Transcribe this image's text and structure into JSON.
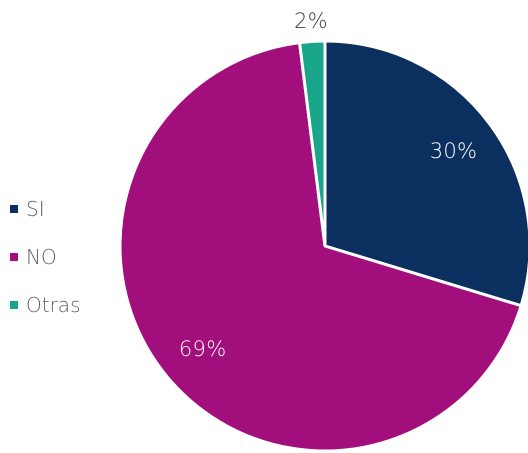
{
  "chart_data": {
    "type": "pie",
    "title": "",
    "legend_position": "left",
    "slices": [
      {
        "label": "SI",
        "value": 30,
        "display": "30%",
        "color": "#0b2f5f"
      },
      {
        "label": "NO",
        "value": 69,
        "display": "69%",
        "color": "#a20e7b"
      },
      {
        "label": "Otras",
        "value": 2,
        "display": "2%",
        "color": "#18a58a"
      }
    ]
  }
}
